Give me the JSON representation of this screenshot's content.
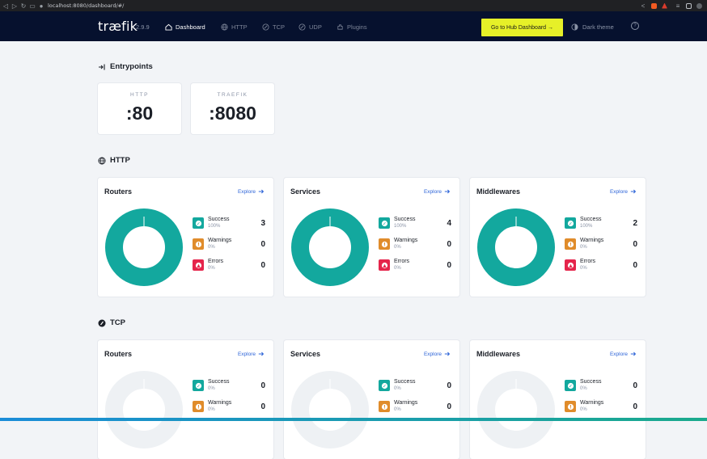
{
  "browser": {
    "url": "localhost:8080/dashboard/#/"
  },
  "header": {
    "logo": "træfik",
    "version": "2.9.9",
    "nav": [
      {
        "label": "Dashboard",
        "icon": "home-icon",
        "active": true
      },
      {
        "label": "HTTP",
        "icon": "globe-icon",
        "active": false
      },
      {
        "label": "TCP",
        "icon": "tcp-icon",
        "active": false
      },
      {
        "label": "UDP",
        "icon": "udp-icon",
        "active": false
      },
      {
        "label": "Plugins",
        "icon": "plugins-icon",
        "active": false
      }
    ],
    "hub_button": "Go to Hub Dashboard →",
    "theme_toggle": "Dark theme"
  },
  "entrypoints": {
    "title": "Entrypoints",
    "items": [
      {
        "name": "HTTP",
        "value": ":80"
      },
      {
        "name": "TRAEFIK",
        "value": ":8080"
      }
    ]
  },
  "sections": [
    {
      "title": "HTTP",
      "cards": [
        {
          "title": "Routers",
          "explore": "Explore",
          "success": {
            "label": "Success",
            "pct": "100%",
            "count": "3"
          },
          "warnings": {
            "label": "Warnings",
            "pct": "0%",
            "count": "0"
          },
          "errors": {
            "label": "Errors",
            "pct": "0%",
            "count": "0"
          }
        },
        {
          "title": "Services",
          "explore": "Explore",
          "success": {
            "label": "Success",
            "pct": "100%",
            "count": "4"
          },
          "warnings": {
            "label": "Warnings",
            "pct": "0%",
            "count": "0"
          },
          "errors": {
            "label": "Errors",
            "pct": "0%",
            "count": "0"
          }
        },
        {
          "title": "Middlewares",
          "explore": "Explore",
          "success": {
            "label": "Success",
            "pct": "100%",
            "count": "2"
          },
          "warnings": {
            "label": "Warnings",
            "pct": "0%",
            "count": "0"
          },
          "errors": {
            "label": "Errors",
            "pct": "0%",
            "count": "0"
          }
        }
      ]
    },
    {
      "title": "TCP",
      "cards": [
        {
          "title": "Routers",
          "explore": "Explore",
          "success": {
            "label": "Success",
            "pct": "0%",
            "count": "0"
          },
          "warnings": {
            "label": "Warnings",
            "pct": "0%",
            "count": "0"
          }
        },
        {
          "title": "Services",
          "explore": "Explore",
          "success": {
            "label": "Success",
            "pct": "0%",
            "count": "0"
          },
          "warnings": {
            "label": "Warnings",
            "pct": "0%",
            "count": "0"
          }
        },
        {
          "title": "Middlewares",
          "explore": "Explore",
          "success": {
            "label": "Success",
            "pct": "0%",
            "count": "0"
          },
          "warnings": {
            "label": "Warnings",
            "pct": "0%",
            "count": "0"
          }
        }
      ]
    }
  ],
  "colors": {
    "success": "#13a89e",
    "warning": "#e08c2b",
    "error": "#e5254b",
    "empty": "#eef1f4",
    "accent": "#e6f028",
    "nav_bg": "#06112e"
  }
}
